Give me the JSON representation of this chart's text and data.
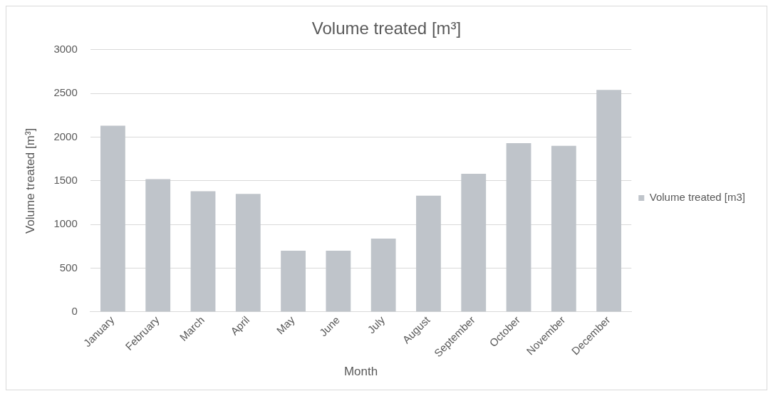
{
  "chart_data": {
    "type": "bar",
    "title": "Volume treated [m³]",
    "xlabel": "Month",
    "ylabel": "Volume treated [m³]",
    "categories": [
      "January",
      "February",
      "March",
      "April",
      "May",
      "June",
      "July",
      "August",
      "September",
      "October",
      "November",
      "December"
    ],
    "series": [
      {
        "name": "Volume treated [m3]",
        "color": "#bfc4ca",
        "values": [
          2130,
          1520,
          1380,
          1350,
          700,
          700,
          840,
          1330,
          1580,
          1930,
          1900,
          2540
        ]
      }
    ],
    "ylim": [
      0,
      3000
    ],
    "yticks": [
      0,
      500,
      1000,
      1500,
      2000,
      2500,
      3000
    ],
    "grid": "y",
    "legend": "right"
  }
}
